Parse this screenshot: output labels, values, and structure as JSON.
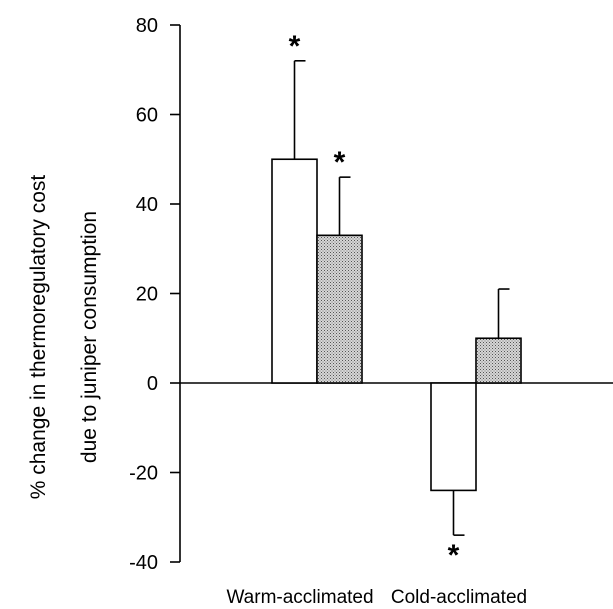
{
  "chart_data": {
    "type": "bar",
    "categories": [
      "Warm-acclimated",
      "Cold-acclimated"
    ],
    "ylabel_lines": [
      "% change in thermoregulatory cost",
      "due to juniper consumption"
    ],
    "ylim": [
      -40,
      80
    ],
    "yticks": [
      -40,
      -20,
      0,
      20,
      40,
      60,
      80
    ],
    "grid": false,
    "legend": "none",
    "series": [
      {
        "fill": "#ffffff",
        "pattern": "none",
        "values": [
          50,
          -24
        ],
        "errors": [
          22,
          10
        ],
        "significant": [
          true,
          true
        ]
      },
      {
        "fill": "#bdbdbd",
        "pattern": "stipple",
        "values": [
          33,
          10
        ],
        "errors": [
          13,
          11
        ],
        "significant": [
          true,
          false
        ]
      }
    ],
    "significance_marker": "*"
  }
}
